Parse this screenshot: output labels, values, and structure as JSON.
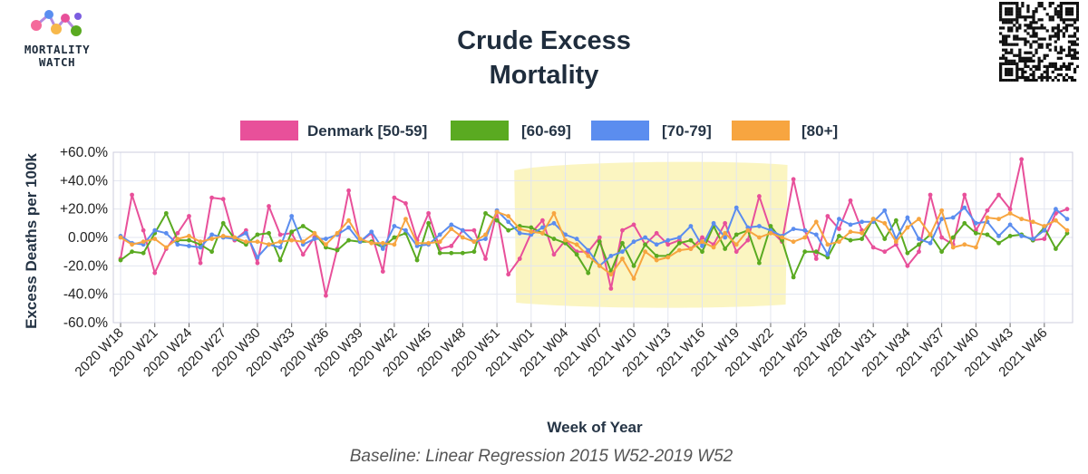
{
  "header": {
    "logo_line1": "MORTALITY",
    "logo_line2": "WATCH",
    "title_line1": "Crude Excess",
    "title_line2": "Mortality"
  },
  "chart_data": {
    "type": "line",
    "title": "Crude Excess Mortality",
    "xlabel": "Week of Year",
    "ylabel": "Excess Deaths per 100k",
    "footnote": "Baseline: Linear Regression 2015 W52-2019 W52",
    "ylim": [
      -60,
      60
    ],
    "yticks": [
      60,
      40,
      20,
      0,
      -20,
      -40,
      -60
    ],
    "ytick_labels": [
      "+60.0%",
      "+40.0%",
      "+20.0%",
      "0.00%",
      "-20.0%",
      "-40.0%",
      "-60.0%"
    ],
    "grid": true,
    "legend": "top",
    "categories": [
      "2020 W18",
      "2020 W19",
      "2020 W20",
      "2020 W21",
      "2020 W22",
      "2020 W23",
      "2020 W24",
      "2020 W25",
      "2020 W26",
      "2020 W27",
      "2020 W28",
      "2020 W29",
      "2020 W30",
      "2020 W31",
      "2020 W32",
      "2020 W33",
      "2020 W34",
      "2020 W35",
      "2020 W36",
      "2020 W37",
      "2020 W38",
      "2020 W39",
      "2020 W40",
      "2020 W41",
      "2020 W42",
      "2020 W43",
      "2020 W44",
      "2020 W45",
      "2020 W46",
      "2020 W47",
      "2020 W48",
      "2020 W49",
      "2020 W50",
      "2020 W51",
      "2020 W52",
      "2020 W53",
      "2021 W01",
      "2021 W02",
      "2021 W03",
      "2021 W04",
      "2021 W05",
      "2021 W06",
      "2021 W07",
      "2021 W08",
      "2021 W09",
      "2021 W10",
      "2021 W11",
      "2021 W12",
      "2021 W13",
      "2021 W14",
      "2021 W15",
      "2021 W16",
      "2021 W17",
      "2021 W18",
      "2021 W19",
      "2021 W20",
      "2021 W21",
      "2021 W22",
      "2021 W23",
      "2021 W24",
      "2021 W25",
      "2021 W26",
      "2021 W27",
      "2021 W28",
      "2021 W29",
      "2021 W30",
      "2021 W31",
      "2021 W32",
      "2021 W33",
      "2021 W34",
      "2021 W35",
      "2021 W36",
      "2021 W37",
      "2021 W38",
      "2021 W39",
      "2021 W40",
      "2021 W41",
      "2021 W42",
      "2021 W43",
      "2021 W44",
      "2021 W45",
      "2021 W46",
      "2021 W47",
      "2021 W48"
    ],
    "x_tick_labels": [
      "2020 W18",
      "2020 W21",
      "2020 W24",
      "2020 W27",
      "2020 W30",
      "2020 W33",
      "2020 W36",
      "2020 W39",
      "2020 W42",
      "2020 W45",
      "2020 W48",
      "2020 W51",
      "2021 W01",
      "2021 W04",
      "2021 W07",
      "2021 W10",
      "2021 W13",
      "2021 W16",
      "2021 W19",
      "2021 W22",
      "2021 W25",
      "2021 W28",
      "2021 W31",
      "2021 W34",
      "2021 W37",
      "2021 W40",
      "2021 W43",
      "2021 W46"
    ],
    "series": [
      {
        "name": "Denmark [50-59]",
        "color": "#e8509a",
        "values": [
          -15,
          30,
          5,
          -25,
          -8,
          3,
          15,
          -18,
          28,
          27,
          -2,
          5,
          -18,
          22,
          2,
          3,
          -12,
          0,
          -41,
          -8,
          33,
          -3,
          3,
          -24,
          28,
          24,
          -2,
          17,
          -8,
          -6,
          5,
          5,
          -15,
          18,
          -26,
          -15,
          3,
          12,
          -12,
          -2,
          -10,
          -10,
          0,
          -36,
          5,
          9,
          -5,
          3,
          -5,
          -2,
          -8,
          0,
          -5,
          10,
          -10,
          -2,
          29,
          5,
          -3,
          41,
          5,
          -15,
          15,
          6,
          26,
          5,
          -7,
          -10,
          -5,
          -20,
          -10,
          30,
          0,
          -5,
          30,
          5,
          19,
          30,
          20,
          55,
          -2,
          -1,
          17,
          20
        ]
      },
      {
        "name": "[60-69]",
        "color": "#5aaa21",
        "values": [
          -16,
          -10,
          -11,
          3,
          17,
          -2,
          -2,
          -5,
          -10,
          10,
          -1,
          -5,
          2,
          3,
          -16,
          4,
          8,
          3,
          -7,
          -9,
          -2,
          -3,
          -3,
          -7,
          0,
          3,
          -16,
          10,
          -11,
          -11,
          -11,
          -10,
          17,
          12,
          5,
          8,
          7,
          3,
          -1,
          -4,
          -12,
          -25,
          -3,
          -24,
          -4,
          -20,
          -5,
          -13,
          -13,
          -4,
          -2,
          -10,
          8,
          -8,
          2,
          5,
          -18,
          8,
          -2,
          -28,
          -10,
          -10,
          -14,
          1,
          -2,
          -1,
          13,
          -1,
          12,
          -11,
          -5,
          2,
          -10,
          0,
          10,
          3,
          2,
          -4,
          1,
          2,
          -2,
          7,
          -8,
          3
        ]
      },
      {
        "name": "[70-79]",
        "color": "#5b8def",
        "values": [
          1,
          -4,
          -5,
          5,
          3,
          -5,
          -6,
          -7,
          2,
          0,
          -1,
          3,
          -14,
          -5,
          -7,
          15,
          -5,
          -1,
          -1,
          2,
          7,
          -3,
          4,
          -8,
          8,
          5,
          -6,
          -5,
          2,
          9,
          5,
          -3,
          -1,
          19,
          11,
          3,
          2,
          7,
          10,
          2,
          -1,
          -9,
          -20,
          -13,
          -10,
          -3,
          0,
          -5,
          -2,
          0,
          8,
          -6,
          10,
          0,
          21,
          7,
          8,
          5,
          1,
          6,
          5,
          2,
          -12,
          13,
          9,
          11,
          11,
          19,
          -1,
          14,
          -1,
          -4,
          13,
          14,
          21,
          10,
          11,
          1,
          9,
          1,
          -1,
          5,
          20,
          13
        ]
      },
      {
        "name": "[80+]",
        "color": "#f7a540",
        "values": [
          0,
          -5,
          -3,
          -1,
          -7,
          -1,
          1,
          -3,
          -1,
          1,
          0,
          -3,
          -3,
          -5,
          -3,
          -2,
          -3,
          3,
          -5,
          3,
          12,
          -1,
          -4,
          -4,
          -5,
          13,
          -4,
          -4,
          -3,
          6,
          0,
          -3,
          2,
          18,
          15,
          6,
          4,
          3,
          17,
          -2,
          -5,
          -13,
          -20,
          -26,
          -15,
          -29,
          -10,
          -16,
          -14,
          -9,
          -8,
          -3,
          -7,
          3,
          -5,
          5,
          0,
          3,
          0,
          -3,
          0,
          11,
          -5,
          -3,
          4,
          3,
          13,
          10,
          -3,
          7,
          13,
          2,
          19,
          -7,
          -5,
          -7,
          14,
          13,
          17,
          13,
          11,
          8,
          12,
          5
        ]
      }
    ],
    "annotation": "highlighted region 2020 W53 - 2021 W23"
  }
}
